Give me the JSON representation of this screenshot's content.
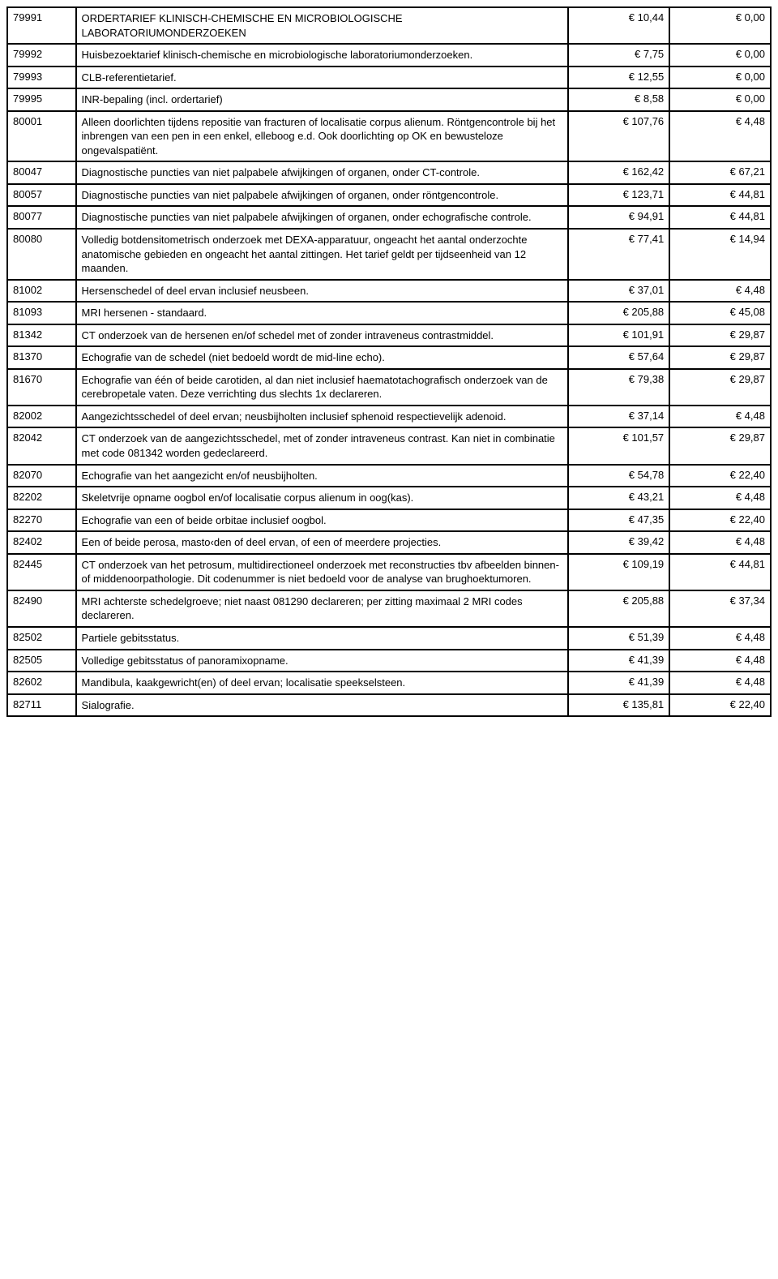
{
  "rows": [
    {
      "code": "79991",
      "desc": "ORDERTARIEF KLINISCH-CHEMISCHE EN MICROBIOLOGISCHE LABORATORIUMONDERZOEKEN",
      "p1": "€ 10,44",
      "p2": "€ 0,00"
    },
    {
      "code": "79992",
      "desc": "Huisbezoektarief klinisch-chemische en microbiologische laboratoriumonderzoeken.",
      "p1": "€ 7,75",
      "p2": "€ 0,00"
    },
    {
      "code": "79993",
      "desc": "CLB-referentietarief.",
      "p1": "€ 12,55",
      "p2": "€ 0,00"
    },
    {
      "code": "79995",
      "desc": "INR-bepaling (incl. ordertarief)",
      "p1": "€ 8,58",
      "p2": "€ 0,00"
    },
    {
      "code": "80001",
      "desc": "Alleen doorlichten tijdens repositie van fracturen of localisatie corpus alienum. Röntgencontrole bij het inbrengen van een pen in een enkel, elleboog e.d. Ook doorlichting op OK en bewusteloze ongevalspatiënt.",
      "p1": "€ 107,76",
      "p2": "€ 4,48"
    },
    {
      "code": "80047",
      "desc": "Diagnostische puncties van niet palpabele afwijkingen of organen, onder CT-controle.",
      "p1": "€ 162,42",
      "p2": "€ 67,21"
    },
    {
      "code": "80057",
      "desc": "Diagnostische puncties van niet palpabele afwijkingen of organen, onder röntgencontrole.",
      "p1": "€ 123,71",
      "p2": "€ 44,81"
    },
    {
      "code": "80077",
      "desc": "Diagnostische puncties van niet palpabele afwijkingen of organen, onder echografische controle.",
      "p1": "€ 94,91",
      "p2": "€ 44,81"
    },
    {
      "code": "80080",
      "desc": "Volledig botdensitometrisch onderzoek met DEXA-apparatuur, ongeacht het aantal onderzochte anatomische gebieden en ongeacht het aantal zittingen. Het tarief geldt per tijdseenheid van 12 maanden.",
      "p1": "€ 77,41",
      "p2": "€ 14,94"
    },
    {
      "code": "81002",
      "desc": "Hersenschedel of deel ervan inclusief neusbeen.",
      "p1": "€ 37,01",
      "p2": "€ 4,48"
    },
    {
      "code": "81093",
      "desc": "MRI hersenen - standaard.",
      "p1": "€ 205,88",
      "p2": "€ 45,08"
    },
    {
      "code": "81342",
      "desc": "CT onderzoek van de hersenen en/of schedel met of zonder intraveneus contrastmiddel.",
      "p1": "€ 101,91",
      "p2": "€ 29,87"
    },
    {
      "code": "81370",
      "desc": "Echografie van de schedel (niet bedoeld wordt de mid-line echo).",
      "p1": "€ 57,64",
      "p2": "€ 29,87"
    },
    {
      "code": "81670",
      "desc": "Echografie van één of beide carotiden, al dan niet inclusief haematotachografisch onderzoek van de cerebropetale vaten. Deze verrichting dus slechts 1x declareren.",
      "p1": "€ 79,38",
      "p2": "€ 29,87"
    },
    {
      "code": "82002",
      "desc": "Aangezichtsschedel of deel ervan; neusbijholten inclusief sphenoid respectievelijk adenoid.",
      "p1": "€ 37,14",
      "p2": "€ 4,48"
    },
    {
      "code": "82042",
      "desc": "CT onderzoek van de aangezichtsschedel, met of zonder intraveneus contrast. Kan niet in combinatie met code 081342 worden gedeclareerd.",
      "p1": "€ 101,57",
      "p2": "€ 29,87"
    },
    {
      "code": "82070",
      "desc": "Echografie van het aangezicht en/of neusbijholten.",
      "p1": "€ 54,78",
      "p2": "€ 22,40"
    },
    {
      "code": "82202",
      "desc": "Skeletvrije opname oogbol en/of localisatie corpus alienum in oog(kas).",
      "p1": "€ 43,21",
      "p2": "€ 4,48"
    },
    {
      "code": "82270",
      "desc": "Echografie van een of beide orbitae inclusief oogbol.",
      "p1": "€ 47,35",
      "p2": "€ 22,40"
    },
    {
      "code": "82402",
      "desc": "Een of beide perosa, masto‹den of deel ervan, of een of meerdere projecties.",
      "p1": "€ 39,42",
      "p2": "€ 4,48"
    },
    {
      "code": "82445",
      "desc": "CT onderzoek van het petrosum, multidirectioneel onderzoek met reconstructies tbv afbeelden binnen- of middenoorpathologie. Dit codenummer is niet bedoeld voor de analyse van brughoektumoren.",
      "p1": "€ 109,19",
      "p2": "€ 44,81"
    },
    {
      "code": "82490",
      "desc": "MRI achterste schedelgroeve; niet naast 081290 declareren; per zitting maximaal 2 MRI codes declareren.",
      "p1": "€ 205,88",
      "p2": "€ 37,34"
    },
    {
      "code": "82502",
      "desc": "Partiele gebitsstatus.",
      "p1": "€ 51,39",
      "p2": "€ 4,48"
    },
    {
      "code": "82505",
      "desc": "Volledige gebitsstatus of panoramixopname.",
      "p1": "€ 41,39",
      "p2": "€ 4,48"
    },
    {
      "code": "82602",
      "desc": "Mandibula, kaakgewricht(en) of deel ervan; localisatie speekselsteen.",
      "p1": "€ 41,39",
      "p2": "€ 4,48"
    },
    {
      "code": "82711",
      "desc": "Sialografie.",
      "p1": "€ 135,81",
      "p2": "€ 22,40"
    }
  ]
}
